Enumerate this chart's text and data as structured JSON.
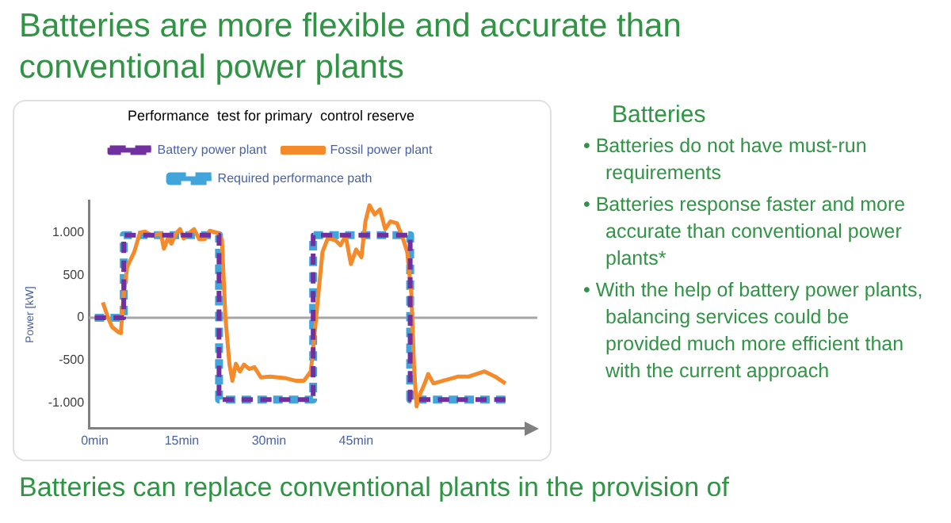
{
  "chart_data": {
    "type": "line",
    "title": "Batteries are more flexible and accurate than conventional power plants",
    "subtitle": "Performance  test for primary  control reserve",
    "ylabel": "Power [kW]",
    "xlim": [
      -1,
      74
    ],
    "xticks": [
      {
        "value": 0,
        "label": "0min"
      },
      {
        "value": 15,
        "label": "15min"
      },
      {
        "value": 30,
        "label": "30min"
      },
      {
        "value": 45,
        "label": "45min"
      }
    ],
    "ylim": [
      -1300,
      1370
    ],
    "yticks": [
      {
        "value": -1000,
        "label": "-1.000"
      },
      {
        "value": -500,
        "label": "-500"
      },
      0,
      {
        "value": 500,
        "label": "500"
      },
      {
        "value": 1000,
        "label": "1.000"
      }
    ],
    "grid": false,
    "legend": "top",
    "marker": "none",
    "ref_lines": [
      {
        "axis": "y",
        "value": 0,
        "color": "#a6a6a6"
      }
    ],
    "series": [
      {
        "name": "Required performance path",
        "color": "#41a5dc",
        "line_style": "dashed",
        "x": [
          0,
          5,
          5,
          21.4,
          21.4,
          37.6,
          37.6,
          54.3,
          54.3,
          70.7
        ],
        "values": [
          0,
          0,
          970,
          970,
          -960,
          -960,
          970,
          970,
          -960,
          -960
        ]
      },
      {
        "name": "Fossil power plant",
        "color": "#f58a2a",
        "line_style": "solid",
        "x": [
          1.4,
          2.3,
          3.0,
          4.1,
          4.5,
          5.0,
          5.6,
          6.8,
          7.8,
          8.7,
          9.9,
          11.4,
          11.9,
          12.6,
          13.2,
          14.0,
          14.7,
          15.3,
          16.2,
          17.1,
          18.0,
          18.9,
          19.8,
          21.4,
          21.9,
          22.5,
          23.2,
          23.7,
          24.3,
          25.0,
          25.7,
          26.6,
          27.5,
          28.6,
          30.2,
          32.9,
          34.7,
          36.0,
          37.2,
          37.8,
          38.5,
          39.2,
          40.1,
          41.4,
          42.3,
          43.2,
          44.1,
          45.0,
          45.9,
          46.6,
          47.3,
          48.2,
          49.1,
          50.0,
          50.9,
          52.0,
          52.9,
          53.8,
          54.5,
          54.95,
          55.4,
          56.1,
          56.8,
          57.4,
          58.3,
          59.9,
          62.6,
          64.4,
          67.1,
          68.9,
          70.7
        ],
        "values": [
          180,
          0,
          -110,
          -170,
          -180,
          280,
          600,
          770,
          1000,
          1010,
          960,
          990,
          810,
          930,
          870,
          990,
          1040,
          930,
          990,
          1040,
          920,
          920,
          1020,
          990,
          910,
          0,
          -550,
          -740,
          -540,
          -630,
          -550,
          -600,
          -580,
          -700,
          -690,
          -710,
          -740,
          -740,
          -630,
          -220,
          280,
          770,
          930,
          910,
          850,
          960,
          630,
          800,
          710,
          1130,
          1320,
          1210,
          1270,
          1040,
          1130,
          1110,
          960,
          770,
          280,
          -550,
          -1040,
          -880,
          -770,
          -660,
          -770,
          -740,
          -690,
          -690,
          -630,
          -690,
          -770
        ]
      },
      {
        "name": "Battery power plant",
        "color": "#7030a0",
        "line_style": "dashed",
        "x": [
          0,
          5,
          5,
          21.4,
          21.4,
          37.6,
          37.6,
          54.3,
          54.3,
          70.7
        ],
        "values": [
          0,
          0,
          970,
          970,
          -960,
          -960,
          970,
          970,
          -960,
          -960
        ]
      }
    ],
    "annotations": [
      "Batteries",
      "• Batteries do not have must-run requirements",
      "• Batteries response  faster and more accurate than conventional  power plants*",
      "• With the help of battery power plants, balancing services could be provided much more efficient than with the current approach",
      "Batteries can replace conventional plants in the provision of"
    ]
  }
}
